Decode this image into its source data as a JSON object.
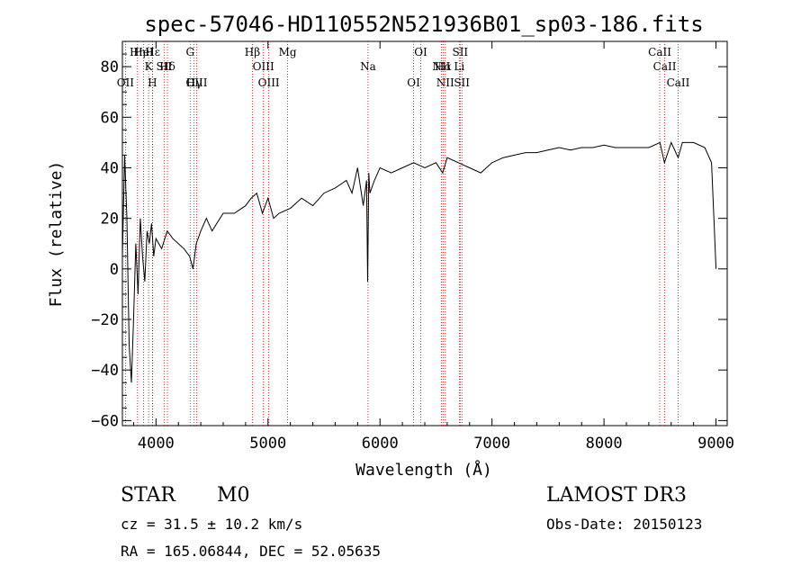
{
  "chart_data": {
    "type": "line",
    "title": "spec-57046-HD110552N521936B01_sp03-186.fits",
    "xlabel": "Wavelength (Å)",
    "ylabel": "Flux (relative)",
    "xlim": [
      3700,
      9100
    ],
    "ylim": [
      -62,
      90
    ],
    "x_ticks": [
      4000,
      5000,
      6000,
      7000,
      8000,
      9000
    ],
    "y_ticks": [
      -60,
      -40,
      -20,
      0,
      20,
      40,
      60,
      80
    ],
    "grid": false,
    "series": [
      {
        "name": "flux",
        "x": [
          3700,
          3720,
          3740,
          3760,
          3780,
          3800,
          3820,
          3840,
          3860,
          3880,
          3900,
          3920,
          3940,
          3960,
          3980,
          4000,
          4050,
          4100,
          4150,
          4200,
          4250,
          4300,
          4330,
          4360,
          4400,
          4450,
          4500,
          4600,
          4700,
          4800,
          4850,
          4900,
          4950,
          5000,
          5050,
          5100,
          5200,
          5300,
          5400,
          5500,
          5600,
          5700,
          5750,
          5800,
          5850,
          5880,
          5890,
          5900,
          5910,
          5950,
          6000,
          6100,
          6200,
          6300,
          6400,
          6500,
          6560,
          6600,
          6700,
          6800,
          6900,
          7000,
          7100,
          7200,
          7300,
          7400,
          7500,
          7600,
          7700,
          7800,
          7900,
          8000,
          8100,
          8200,
          8300,
          8400,
          8500,
          8540,
          8600,
          8662,
          8700,
          8800,
          8900,
          8960,
          9000,
          9000
        ],
        "y": [
          5,
          45,
          20,
          -30,
          -45,
          -20,
          10,
          -10,
          20,
          5,
          -5,
          15,
          10,
          18,
          5,
          12,
          8,
          15,
          12,
          10,
          8,
          5,
          0,
          10,
          15,
          20,
          15,
          22,
          22,
          25,
          28,
          30,
          22,
          28,
          20,
          22,
          24,
          28,
          25,
          30,
          32,
          35,
          30,
          40,
          25,
          35,
          -5,
          38,
          30,
          35,
          40,
          38,
          40,
          42,
          40,
          42,
          38,
          44,
          42,
          40,
          38,
          42,
          44,
          45,
          46,
          46,
          47,
          48,
          47,
          48,
          48,
          49,
          48,
          48,
          48,
          48,
          50,
          42,
          50,
          44,
          50,
          50,
          48,
          42,
          0,
          0
        ]
      }
    ],
    "lines": [
      {
        "name": "Hε",
        "wavelength": 3970
      },
      {
        "name": "Hδ",
        "wavelength": 4102
      },
      {
        "name": "Hγ",
        "wavelength": 4340
      },
      {
        "name": "Hβ",
        "wavelength": 4861
      },
      {
        "name": "Hα",
        "wavelength": 6563
      },
      {
        "name": "OII",
        "wavelength": 3727
      },
      {
        "name": "Hη",
        "wavelength": 3835
      },
      {
        "name": "K",
        "wavelength": 3934
      },
      {
        "name": "H",
        "wavelength": 3968
      },
      {
        "name": "HeI",
        "wavelength": 3889
      },
      {
        "name": "SII",
        "wavelength": 4072
      },
      {
        "name": "OIII",
        "wavelength": 4363
      },
      {
        "name": "G",
        "wavelength": 4305
      },
      {
        "name": "OIII",
        "wavelength": 4959
      },
      {
        "name": "OIII",
        "wavelength": 5007
      },
      {
        "name": "Mg",
        "wavelength": 5175
      },
      {
        "name": "Na",
        "wavelength": 5893
      },
      {
        "name": "OI",
        "wavelength": 6300
      },
      {
        "name": "OI",
        "wavelength": 6364
      },
      {
        "name": "NII",
        "wavelength": 6548
      },
      {
        "name": "NII",
        "wavelength": 6583
      },
      {
        "name": "SII",
        "wavelength": 6716
      },
      {
        "name": "Li",
        "wavelength": 6708
      },
      {
        "name": "SII",
        "wavelength": 6731
      },
      {
        "name": "CaII",
        "wavelength": 8498
      },
      {
        "name": "CaII",
        "wavelength": 8542
      },
      {
        "name": "CaII",
        "wavelength": 8662
      }
    ]
  },
  "info": {
    "class_label": "STAR",
    "subclass": "M0",
    "survey": "LAMOST DR3",
    "cz": "cz = 31.5 ± 10.2 km/s",
    "obs_date": "Obs-Date: 20150123",
    "coords": "RA = 165.06844, DEC =  52.05635"
  },
  "colors": {
    "line_marker": "#cc0000",
    "spectrum": "#000000"
  }
}
